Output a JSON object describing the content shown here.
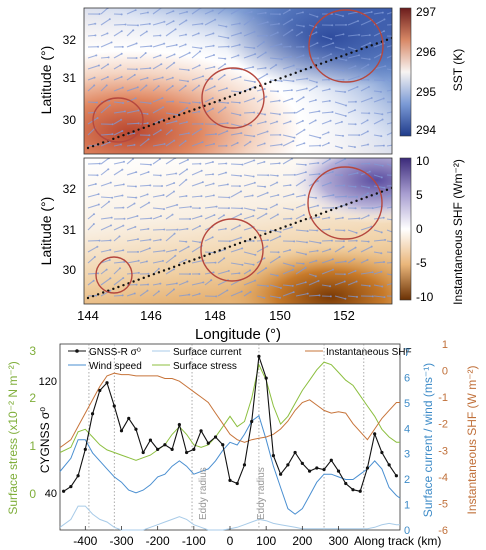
{
  "colors": {
    "gnss": "#111111",
    "wind": "#4a8fd1",
    "current": "#a8cbe8",
    "stress": "#8cbf3f",
    "shf": "#c7743a",
    "eddy": "#b5473e",
    "axis_left": "#7fae3a",
    "axis_right1": "#3f8cc8",
    "axis_right2": "#c0703a"
  },
  "maps": {
    "top": {
      "ylabel": "Latitude (°)",
      "yticks": [
        "32",
        "31",
        "30"
      ],
      "colorbar_label": "SST (K)",
      "colorbar_ticks": [
        "297",
        "296",
        "295",
        "294"
      ]
    },
    "middle": {
      "ylabel": "Latitude (°)",
      "yticks": [
        "32",
        "31",
        "30"
      ],
      "colorbar_label": "Instantaneous SHF (Wm⁻²)",
      "colorbar_ticks": [
        "10",
        "5",
        "0",
        "-5",
        "-10"
      ]
    },
    "xticks": [
      "144",
      "146",
      "148",
      "150",
      "152"
    ],
    "xlabel": "Longitude (°)"
  },
  "line_panel": {
    "left_outer_label": "Surface stress (x10⁻² N m⁻²)",
    "left_outer_ticks": [
      "3",
      "2",
      "1",
      "0"
    ],
    "left_inner_label": "CYGNSS σ⁰",
    "left_inner_ticks": [
      "120",
      "40"
    ],
    "right_inner_label": "Surface current / wind (ms⁻¹)",
    "right_inner_ticks": [
      "7",
      "6",
      "5",
      "4",
      "3",
      "2",
      "1",
      "0"
    ],
    "right_outer_label": "Instantaneous SHF (W m⁻²)",
    "right_outer_ticks": [
      "1",
      "0",
      "-1",
      "-2",
      "-3",
      "-4",
      "-5",
      "-6"
    ],
    "xlabel": "Along track (km)",
    "xticks": [
      "-400",
      "-300",
      "-200",
      "-100",
      "0",
      "100",
      "200",
      "300"
    ],
    "legend": [
      "GNSS-R σ⁰",
      "Wind speed",
      "Surface current",
      "Surface stress",
      "Instantaneous SHF"
    ],
    "annotations": [
      "Eddy radius",
      "Eddy radius"
    ]
  },
  "chart_data": {
    "type": "line",
    "xlabel": "Along track (km)",
    "xlim": [
      -470,
      470
    ],
    "series": [
      {
        "name": "GNSS-R σ⁰",
        "axis": "CYGNSS σ⁰",
        "ylim": [
          20,
          140
        ],
        "x": [
          -460,
          -440,
          -420,
          -400,
          -380,
          -360,
          -340,
          -320,
          -300,
          -280,
          -260,
          -240,
          -220,
          -200,
          -180,
          -160,
          -140,
          -120,
          -100,
          -80,
          -60,
          -40,
          -20,
          0,
          20,
          40,
          60,
          80,
          100,
          120,
          140,
          160,
          180,
          200,
          220,
          240,
          260,
          280,
          300,
          320,
          340,
          360,
          380,
          400,
          420,
          440,
          460
        ],
        "y": [
          45,
          48,
          55,
          72,
          95,
          110,
          115,
          100,
          84,
          92,
          85,
          70,
          78,
          72,
          75,
          72,
          88,
          70,
          72,
          84,
          76,
          80,
          75,
          52,
          50,
          62,
          90,
          132,
          118,
          68,
          56,
          62,
          70,
          63,
          58,
          60,
          59,
          65,
          58,
          50,
          46,
          45,
          60,
          82,
          70,
          62,
          55
        ]
      },
      {
        "name": "Wind speed",
        "axis": "Surface current / wind (ms⁻¹)",
        "ylim": [
          0,
          7
        ],
        "x": [
          -470,
          -440,
          -420,
          -400,
          -380,
          -360,
          -340,
          -320,
          -300,
          -280,
          -260,
          -240,
          -220,
          -200,
          -180,
          -160,
          -140,
          -120,
          -100,
          -80,
          -60,
          -40,
          -20,
          0,
          20,
          40,
          60,
          80,
          100,
          120,
          140,
          160,
          180,
          200,
          220,
          240,
          260,
          280,
          300,
          320,
          340,
          360,
          380,
          400,
          420,
          440,
          460,
          470
        ],
        "y": [
          2.2,
          2.7,
          3.4,
          3.4,
          2.9,
          2.6,
          2.3,
          2.0,
          1.8,
          1.5,
          1.4,
          1.5,
          1.7,
          2.0,
          2.1,
          2.4,
          2.6,
          2.4,
          2.1,
          2.2,
          2.3,
          2.6,
          3.0,
          3.3,
          3.2,
          3.6,
          4.1,
          4.3,
          3.4,
          2.4,
          1.6,
          0.8,
          0.6,
          0.8,
          1.3,
          1.8,
          2.1,
          2.1,
          2.0,
          1.9,
          1.9,
          2.1,
          2.3,
          2.6,
          2.3,
          1.6,
          1.3,
          1.2
        ]
      },
      {
        "name": "Surface current",
        "axis": "Surface current / wind (ms⁻¹)",
        "ylim": [
          0,
          7
        ],
        "x": [
          -470,
          -440,
          -420,
          -400,
          -380,
          -360,
          -340,
          -320,
          -300,
          -280,
          -260,
          -240,
          -220,
          -200,
          -180,
          -160,
          -140,
          -120,
          -100,
          -80,
          -60,
          -40,
          -20,
          0,
          20,
          40,
          60,
          80,
          100,
          120,
          140,
          160,
          180,
          200,
          220,
          240,
          260,
          280,
          300,
          320,
          340,
          360,
          380,
          400,
          420,
          440,
          460,
          470
        ],
        "y": [
          0.1,
          0.4,
          0.9,
          0.9,
          0.6,
          0.4,
          0.3,
          0.1,
          0.0,
          0.0,
          0.0,
          0.0,
          0.1,
          0.2,
          0.3,
          0.4,
          0.5,
          0.4,
          0.2,
          0.1,
          0.0,
          0.0,
          0.0,
          0.05,
          0.1,
          0.2,
          0.3,
          0.4,
          0.35,
          0.25,
          0.2,
          0.15,
          0.1,
          0.05,
          0.05,
          0.05,
          0.05,
          0.05,
          0.05,
          0.05,
          0.05,
          0.05,
          0.05,
          0.1,
          0.2,
          0.25,
          0.2,
          0.2
        ]
      },
      {
        "name": "Surface stress",
        "axis": "Surface stress (x10⁻² N m⁻²)",
        "ylim": [
          -0.6,
          3.0
        ],
        "x": [
          -470,
          -440,
          -420,
          -400,
          -380,
          -360,
          -340,
          -320,
          -300,
          -280,
          -260,
          -240,
          -220,
          -200,
          -180,
          -160,
          -140,
          -120,
          -100,
          -80,
          -60,
          -40,
          -20,
          0,
          20,
          40,
          60,
          80,
          100,
          120,
          140,
          160,
          180,
          200,
          220,
          240,
          260,
          280,
          300,
          320,
          340,
          360,
          380,
          400,
          420,
          440,
          460,
          470
        ],
        "y": [
          0.9,
          1.0,
          1.3,
          1.35,
          1.2,
          1.05,
          0.95,
          0.9,
          0.85,
          0.8,
          0.75,
          0.8,
          0.85,
          0.95,
          1.05,
          1.25,
          1.4,
          1.25,
          1.05,
          1.0,
          1.05,
          1.2,
          1.4,
          1.6,
          1.4,
          1.5,
          1.95,
          2.6,
          2.3,
          1.8,
          1.45,
          1.6,
          1.85,
          2.1,
          2.3,
          2.5,
          2.65,
          2.6,
          2.45,
          2.3,
          2.2,
          2.0,
          1.8,
          1.6,
          1.35,
          1.2,
          1.1,
          1.1
        ]
      },
      {
        "name": "Instantaneous SHF",
        "axis": "Instantaneous SHF (W m⁻²)",
        "ylim": [
          -6,
          1
        ],
        "x": [
          -470,
          -440,
          -420,
          -400,
          -380,
          -360,
          -340,
          -320,
          -300,
          -280,
          -260,
          -240,
          -220,
          -200,
          -180,
          -160,
          -140,
          -120,
          -100,
          -80,
          -60,
          -40,
          -20,
          0,
          20,
          40,
          60,
          80,
          100,
          120,
          140,
          160,
          180,
          200,
          220,
          240,
          260,
          280,
          300,
          320,
          340,
          360,
          380,
          400,
          420,
          440,
          460,
          470
        ],
        "y": [
          -2.9,
          -2.6,
          -2.1,
          -1.6,
          -1.1,
          -0.6,
          -0.2,
          -0.1,
          -0.15,
          -0.15,
          -0.2,
          -0.2,
          -0.2,
          -0.2,
          -0.3,
          -0.3,
          -0.4,
          -0.6,
          -0.8,
          -1.0,
          -1.2,
          -1.6,
          -2.0,
          -2.4,
          -2.6,
          -2.7,
          -2.6,
          -2.55,
          -2.5,
          -2.4,
          -2.2,
          -1.9,
          -1.5,
          -1.2,
          -1.1,
          -1.3,
          -1.5,
          -1.6,
          -1.55,
          -1.6,
          -2.0,
          -2.3,
          -2.6,
          -2.2,
          -1.8,
          -1.5,
          -1.2,
          -1.2
        ]
      }
    ]
  }
}
